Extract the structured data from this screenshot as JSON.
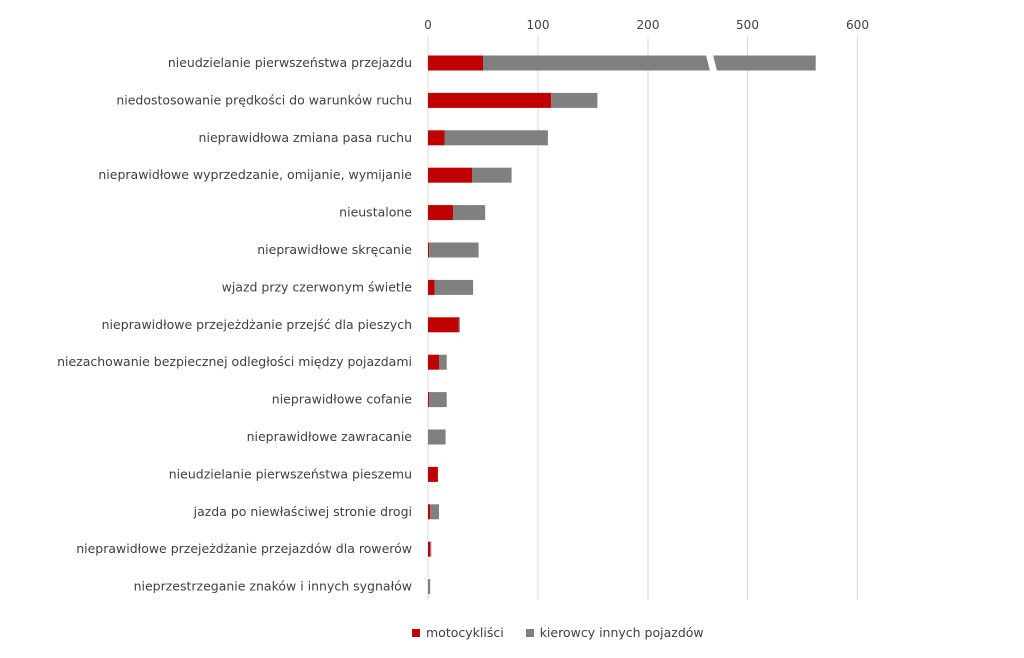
{
  "colors": {
    "motorcyclists": "#c00000",
    "other_drivers": "#808080",
    "grid": "#d9d9d9",
    "text": "#404040"
  },
  "chart_data": {
    "type": "bar",
    "orientation": "horizontal",
    "stacked": true,
    "axis_break": {
      "from": 255,
      "to": 470
    },
    "xlim": [
      0,
      600
    ],
    "x_ticks": [
      {
        "value": 0,
        "label": "0"
      },
      {
        "value": 100,
        "label": "100"
      },
      {
        "value": 200,
        "label": "200"
      },
      {
        "value": 500,
        "label": "500"
      },
      {
        "value": 600,
        "label": "600"
      }
    ],
    "grid": true,
    "legend_position": "bottom",
    "categories": [
      "nieudzielanie pierwszeństwa przejazdu",
      "niedostosowanie prędkości do warunków ruchu",
      "nieprawidłowa zmiana pasa ruchu",
      "nieprawidłowe wyprzedzanie, omijanie, wymijanie",
      "nieustalone",
      "nieprawidłowe skręcanie",
      "wjazd przy czerwonym świetle",
      "nieprawidłowe przejeżdżanie przejść dla pieszych",
      "niezachowanie bezpiecznej odległości między pojazdami",
      "nieprawidłowe cofanie",
      "nieprawidłowe zawracanie",
      "nieudzielanie pierwszeństwa pieszemu",
      "jazda po niewłaściwej stronie drogi",
      "nieprawidłowe przejeżdżanie przejazdów dla rowerów",
      "nieprzestrzeganie znaków i innych sygnałów"
    ],
    "series": [
      {
        "name": "motocykliści",
        "values": [
          50,
          112,
          15,
          40,
          23,
          1,
          6,
          28,
          10,
          1,
          0,
          9,
          2,
          2,
          0
        ]
      },
      {
        "name": "kierowcy innych pojazdów",
        "values": [
          512,
          42,
          94,
          36,
          29,
          45,
          35,
          1,
          7,
          16,
          16,
          0,
          8,
          1,
          2
        ]
      }
    ]
  }
}
